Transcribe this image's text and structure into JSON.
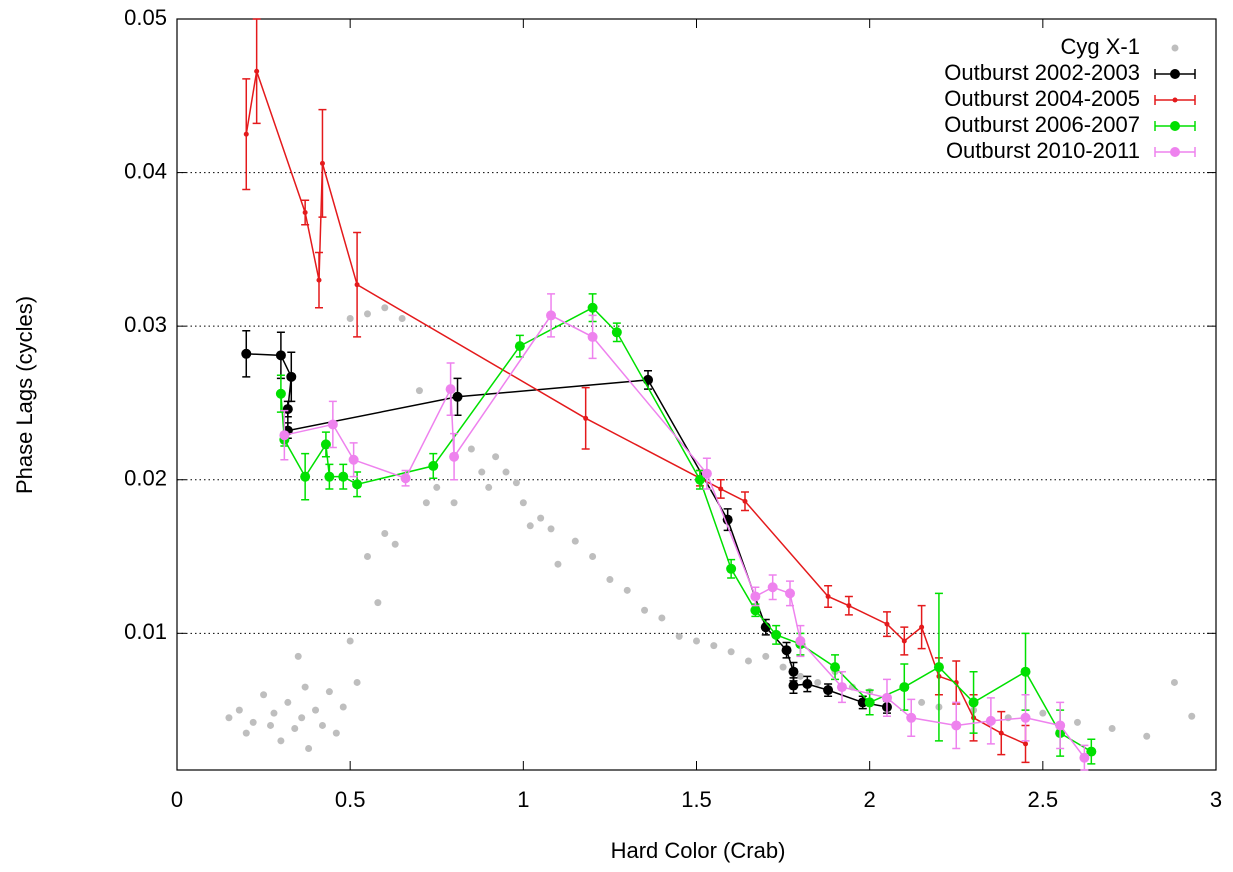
{
  "chart_data": {
    "type": "scatter",
    "xlabel": "Hard Color (Crab)",
    "ylabel": "Phase Lags (cycles)",
    "xlim": [
      0,
      3
    ],
    "ylim": [
      0.0011,
      0.05
    ],
    "xticks": [
      0,
      0.5,
      1,
      1.5,
      2,
      2.5,
      3
    ],
    "yticks": [
      0.01,
      0.02,
      0.03,
      0.04,
      0.05
    ],
    "grid": true,
    "legend": "top-right",
    "series": [
      {
        "name": "Cyg X-1",
        "color": "#bebebe",
        "x": [
          0.15,
          0.18,
          0.2,
          0.22,
          0.25,
          0.27,
          0.28,
          0.3,
          0.32,
          0.34,
          0.36,
          0.38,
          0.4,
          0.42,
          0.44,
          0.46,
          0.48,
          0.5,
          0.52,
          0.55,
          0.58,
          0.6,
          0.63,
          0.35,
          0.37,
          0.5,
          0.55,
          0.6,
          0.65,
          0.7,
          0.72,
          0.75,
          0.8,
          0.85,
          0.88,
          0.9,
          0.92,
          0.95,
          0.98,
          1.0,
          1.02,
          1.05,
          1.08,
          1.1,
          1.15,
          1.2,
          1.25,
          1.3,
          1.35,
          1.4,
          1.45,
          1.5,
          1.55,
          1.6,
          1.65,
          1.7,
          1.75,
          1.8,
          1.85,
          1.9,
          1.95,
          2.0,
          2.05,
          2.1,
          2.15,
          2.2,
          2.3,
          2.4,
          2.5,
          2.6,
          2.7,
          2.8,
          2.88,
          2.93
        ],
        "values": [
          0.0045,
          0.005,
          0.0035,
          0.0042,
          0.006,
          0.004,
          0.0048,
          0.003,
          0.0055,
          0.0038,
          0.0045,
          0.0025,
          0.005,
          0.004,
          0.0062,
          0.0035,
          0.0052,
          0.0095,
          0.0068,
          0.015,
          0.012,
          0.0165,
          0.0158,
          0.0085,
          0.0065,
          0.0305,
          0.0308,
          0.0312,
          0.0305,
          0.0258,
          0.0185,
          0.0195,
          0.0185,
          0.022,
          0.0205,
          0.0195,
          0.0215,
          0.0205,
          0.0198,
          0.0185,
          0.017,
          0.0175,
          0.0168,
          0.0145,
          0.016,
          0.015,
          0.0135,
          0.0128,
          0.0115,
          0.011,
          0.0098,
          0.0095,
          0.0092,
          0.0088,
          0.0082,
          0.0085,
          0.0078,
          0.0072,
          0.0068,
          0.0075,
          0.0065,
          0.0062,
          0.0058,
          0.0065,
          0.0055,
          0.0052,
          0.005,
          0.0045,
          0.0048,
          0.0042,
          0.0038,
          0.0033,
          0.0068,
          0.0046
        ]
      },
      {
        "name": "Outburst 2002-2003",
        "color": "#000000",
        "x": [
          0.2,
          0.3,
          0.33,
          0.32,
          0.32,
          0.81,
          1.36,
          1.59,
          1.7,
          1.76,
          1.78,
          1.78,
          1.82,
          1.88,
          1.98,
          2.05
        ],
        "values": [
          0.0282,
          0.0281,
          0.0267,
          0.0246,
          0.0232,
          0.0254,
          0.0265,
          0.0174,
          0.0104,
          0.0089,
          0.0075,
          0.0066,
          0.0067,
          0.0063,
          0.0055,
          0.0052
        ],
        "yerr": [
          0.0015,
          0.0015,
          0.0016,
          0.0005,
          0.0005,
          0.0012,
          0.0006,
          0.0007,
          0.0005,
          0.0005,
          0.0006,
          0.0005,
          0.0005,
          0.0004,
          0.0004,
          0.0004
        ]
      },
      {
        "name": "Outburst 2004-2005",
        "color": "#e41a1c",
        "x": [
          0.2,
          0.23,
          0.37,
          0.41,
          0.42,
          0.52,
          1.18,
          1.51,
          1.57,
          1.64,
          1.88,
          1.94,
          2.05,
          2.1,
          2.15,
          2.2,
          2.25,
          2.3,
          2.38,
          2.45
        ],
        "values": [
          0.0425,
          0.0466,
          0.0374,
          0.033,
          0.0406,
          0.0327,
          0.024,
          0.0201,
          0.0194,
          0.0186,
          0.0124,
          0.0118,
          0.0106,
          0.0095,
          0.0104,
          0.0072,
          0.0068,
          0.0045,
          0.0035,
          0.0028
        ],
        "yerr": [
          0.0036,
          0.0034,
          0.0008,
          0.0018,
          0.0035,
          0.0034,
          0.002,
          0.0005,
          0.0006,
          0.0006,
          0.0007,
          0.0006,
          0.0008,
          0.0009,
          0.0014,
          0.0012,
          0.0014,
          0.0015,
          0.0014,
          0.0012
        ]
      },
      {
        "name": "Outburst 2006-2007",
        "color": "#00e000",
        "x": [
          0.3,
          0.31,
          0.37,
          0.43,
          0.44,
          0.48,
          0.52,
          0.74,
          0.99,
          1.2,
          1.27,
          1.51,
          1.6,
          1.67,
          1.73,
          1.8,
          1.9,
          2.0,
          2.1,
          2.2,
          2.3,
          2.45,
          2.55,
          2.64
        ],
        "values": [
          0.0256,
          0.0226,
          0.0202,
          0.0223,
          0.0202,
          0.0202,
          0.0197,
          0.0209,
          0.0287,
          0.0312,
          0.0296,
          0.02,
          0.0142,
          0.0115,
          0.0099,
          0.0093,
          0.0078,
          0.0055,
          0.0065,
          0.0078,
          0.0055,
          0.0075,
          0.0035,
          0.0023
        ],
        "yerr": [
          0.0012,
          0.0004,
          0.0015,
          0.0008,
          0.0008,
          0.0008,
          0.0008,
          0.0008,
          0.0007,
          0.0009,
          0.0006,
          0.0006,
          0.0006,
          0.0004,
          0.0006,
          0.0007,
          0.0008,
          0.0008,
          0.0015,
          0.0048,
          0.002,
          0.0025,
          0.0015,
          0.0008
        ]
      },
      {
        "name": "Outburst 2010-2011",
        "color": "#ee82ee",
        "x": [
          0.31,
          0.45,
          0.51,
          0.66,
          0.79,
          0.8,
          1.08,
          1.2,
          1.53,
          1.67,
          1.72,
          1.77,
          1.8,
          1.92,
          2.05,
          2.12,
          2.25,
          2.35,
          2.45,
          2.55,
          2.62
        ],
        "values": [
          0.0229,
          0.0236,
          0.0213,
          0.0201,
          0.0259,
          0.0215,
          0.0307,
          0.0293,
          0.0204,
          0.0124,
          0.013,
          0.0126,
          0.0095,
          0.0065,
          0.0058,
          0.0045,
          0.004,
          0.0043,
          0.0045,
          0.004,
          0.0019
        ],
        "yerr": [
          0.0016,
          0.0015,
          0.0011,
          0.0005,
          0.0017,
          0.0015,
          0.0014,
          0.0014,
          0.001,
          0.0006,
          0.0008,
          0.0008,
          0.001,
          0.001,
          0.0012,
          0.0012,
          0.0015,
          0.0015,
          0.0015,
          0.0015,
          0.0008
        ]
      }
    ]
  }
}
